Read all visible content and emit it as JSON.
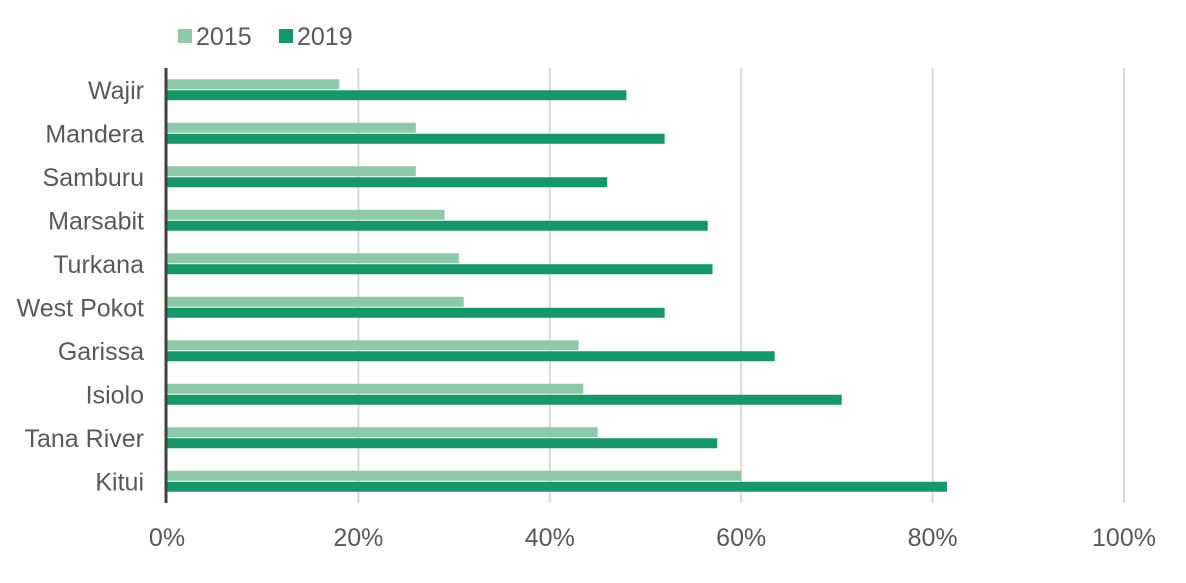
{
  "chart_data": {
    "type": "bar",
    "orientation": "horizontal",
    "title": "",
    "xlabel": "",
    "ylabel": "",
    "categories": [
      "Wajir",
      "Mandera",
      "Samburu",
      "Marsabit",
      "Turkana",
      "West Pokot",
      "Garissa",
      "Isiolo",
      "Tana River",
      "Kitui"
    ],
    "series": [
      {
        "name": "2015",
        "color": "#8fcaa8",
        "values": [
          18,
          26,
          26,
          29,
          30.5,
          31,
          43,
          43.5,
          45,
          60
        ]
      },
      {
        "name": "2019",
        "color": "#14976b",
        "values": [
          48,
          52,
          46,
          56.5,
          57,
          52,
          63.5,
          70.5,
          57.5,
          81.5
        ]
      }
    ],
    "xlim": [
      0,
      100
    ],
    "xticks": [
      0,
      20,
      40,
      60,
      80,
      100
    ],
    "xtick_labels": [
      "0%",
      "20%",
      "40%",
      "60%",
      "80%",
      "100%"
    ],
    "grid": true,
    "legend_position": "top-left"
  }
}
